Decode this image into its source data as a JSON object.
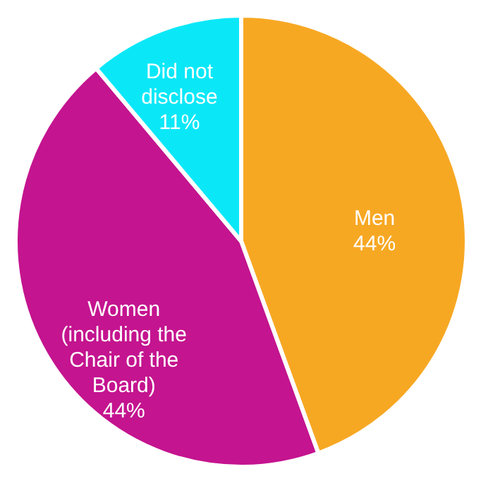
{
  "chart_data": {
    "type": "pie",
    "categories": [
      "Men",
      "Women (including the Chair of the Board)",
      "Did not disclose"
    ],
    "values": [
      44,
      44,
      11
    ],
    "colors": [
      "#f7a823",
      "#c4148f",
      "#0ae8f8"
    ],
    "value_labels": [
      "44%",
      "44%",
      "11%"
    ],
    "legend": false
  }
}
